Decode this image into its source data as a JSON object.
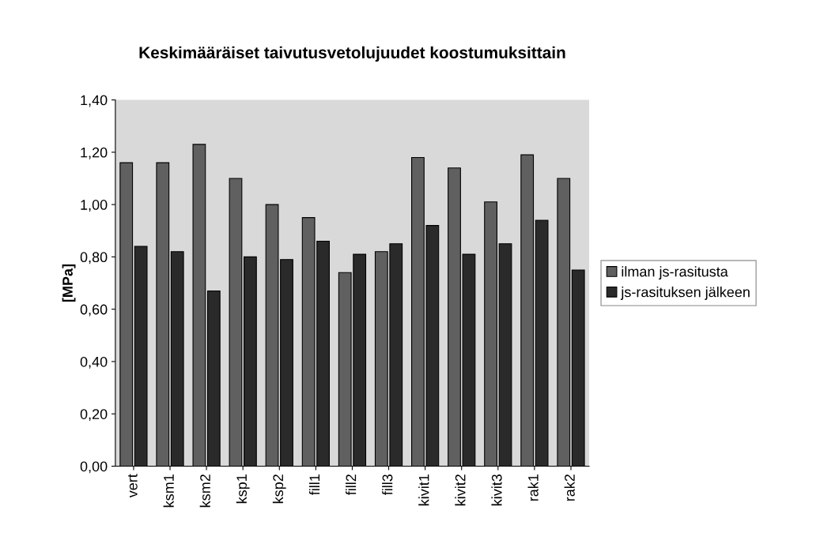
{
  "chart_data": {
    "type": "bar",
    "title": "Keskimääräiset taivutusvetolujuudet koostumuksittain",
    "ylabel": "[MPa]",
    "categories": [
      "vert",
      "ksm1",
      "ksm2",
      "ksp1",
      "ksp2",
      "fill1",
      "fill2",
      "fill3",
      "kivit1",
      "kivit2",
      "kivit3",
      "rak1",
      "rak2"
    ],
    "series": [
      {
        "name": "ilman js-rasitusta",
        "color": "#606060",
        "values": [
          1.16,
          1.16,
          1.23,
          1.1,
          1.0,
          0.95,
          0.74,
          0.82,
          1.18,
          1.14,
          1.01,
          1.19,
          1.1
        ]
      },
      {
        "name": "js-rasituksen jälkeen",
        "color": "#2a2a2a",
        "values": [
          0.84,
          0.82,
          0.67,
          0.8,
          0.79,
          0.86,
          0.81,
          0.85,
          0.92,
          0.81,
          0.85,
          0.94,
          0.75
        ]
      }
    ],
    "ylim": [
      0,
      1.4
    ],
    "yticks": [
      {
        "value": 0,
        "label": "0,00"
      },
      {
        "value": 0.2,
        "label": "0,20"
      },
      {
        "value": 0.4,
        "label": "0,40"
      },
      {
        "value": 0.6,
        "label": "0,60"
      },
      {
        "value": 0.8,
        "label": "0,80"
      },
      {
        "value": 1.0,
        "label": "1,00"
      },
      {
        "value": 1.2,
        "label": "1,20"
      },
      {
        "value": 1.4,
        "label": "1,40"
      }
    ],
    "grid": false,
    "legend": "right"
  }
}
